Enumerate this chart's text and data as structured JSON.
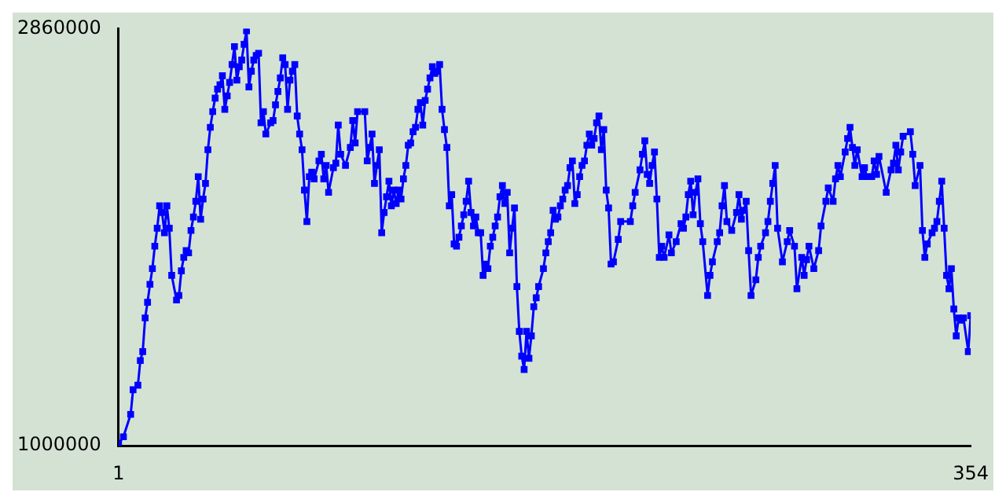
{
  "chart_data": {
    "type": "line",
    "marker": "square",
    "xlim": [
      1,
      354
    ],
    "xticks": [
      1,
      354
    ],
    "ylim": [
      1000000,
      2860000
    ],
    "yticks": [
      1000000,
      2860000
    ],
    "x": [
      1,
      3,
      6,
      7,
      9,
      10,
      11,
      12,
      13,
      14,
      15,
      16,
      17,
      18,
      19,
      20,
      21,
      22,
      23,
      25,
      26,
      27,
      28,
      29,
      30,
      31,
      32,
      33,
      34,
      35,
      36,
      37,
      38,
      39,
      40,
      41,
      42,
      43,
      44,
      45,
      46,
      47,
      48,
      49,
      50,
      51,
      52,
      53,
      54,
      55,
      56,
      57,
      58,
      59,
      60,
      61,
      62,
      64,
      65,
      66,
      67,
      68,
      69,
      70,
      71,
      72,
      73,
      74,
      75,
      76,
      77,
      78,
      79,
      80,
      81,
      82,
      84,
      85,
      86,
      87,
      88,
      90,
      91,
      92,
      93,
      95,
      97,
      98,
      99,
      100,
      103,
      104,
      105,
      106,
      107,
      108,
      109,
      110,
      111,
      112,
      113,
      114,
      115,
      116,
      117,
      118,
      119,
      120,
      121,
      122,
      123,
      124,
      125,
      126,
      127,
      128,
      129,
      130,
      131,
      132,
      133,
      134,
      135,
      136,
      137,
      138,
      139,
      140,
      141,
      142,
      143,
      144,
      145,
      146,
      147,
      148,
      149,
      150,
      151,
      152,
      153,
      154,
      155,
      156,
      157,
      158,
      159,
      160,
      161,
      162,
      163,
      164,
      165,
      166,
      167,
      168,
      169,
      170,
      171,
      172,
      173,
      174,
      175,
      177,
      178,
      179,
      180,
      181,
      182,
      183,
      184,
      185,
      186,
      187,
      188,
      189,
      190,
      191,
      192,
      193,
      194,
      195,
      196,
      197,
      198,
      199,
      200,
      201,
      202,
      203,
      204,
      205,
      206,
      208,
      209,
      213,
      214,
      215,
      217,
      218,
      219,
      220,
      221,
      222,
      223,
      224,
      225,
      226,
      227,
      229,
      230,
      232,
      234,
      235,
      236,
      237,
      238,
      239,
      240,
      241,
      242,
      243,
      245,
      246,
      247,
      249,
      250,
      251,
      252,
      253,
      255,
      257,
      258,
      259,
      260,
      261,
      262,
      263,
      265,
      266,
      267,
      269,
      270,
      271,
      272,
      273,
      274,
      276,
      278,
      279,
      281,
      282,
      284,
      285,
      286,
      287,
      289,
      291,
      292,
      294,
      295,
      297,
      298,
      299,
      300,
      302,
      303,
      304,
      305,
      306,
      307,
      309,
      310,
      311,
      313,
      314,
      315,
      316,
      319,
      321,
      322,
      323,
      324,
      325,
      326,
      329,
      330,
      331,
      333,
      334,
      335,
      336,
      338,
      339,
      340,
      341,
      342,
      343,
      344,
      345,
      346,
      347,
      348,
      349,
      350,
      351,
      353,
      354
    ],
    "series": [
      {
        "color": "#0000ff",
        "values": [
          1010000,
          1040000,
          1140000,
          1250000,
          1270000,
          1380000,
          1420000,
          1570000,
          1640000,
          1720000,
          1790000,
          1890000,
          1970000,
          2070000,
          2040000,
          1950000,
          2070000,
          1970000,
          1760000,
          1650000,
          1670000,
          1780000,
          1840000,
          1870000,
          1860000,
          1960000,
          2020000,
          2090000,
          2200000,
          2010000,
          2100000,
          2170000,
          2320000,
          2420000,
          2490000,
          2550000,
          2590000,
          2610000,
          2650000,
          2500000,
          2560000,
          2620000,
          2700000,
          2780000,
          2630000,
          2690000,
          2720000,
          2790000,
          2850000,
          2600000,
          2670000,
          2720000,
          2740000,
          2750000,
          2440000,
          2490000,
          2390000,
          2440000,
          2450000,
          2520000,
          2580000,
          2640000,
          2730000,
          2700000,
          2500000,
          2630000,
          2670000,
          2700000,
          2470000,
          2390000,
          2320000,
          2140000,
          2000000,
          2200000,
          2220000,
          2190000,
          2270000,
          2300000,
          2190000,
          2250000,
          2130000,
          2240000,
          2260000,
          2430000,
          2300000,
          2250000,
          2330000,
          2450000,
          2350000,
          2490000,
          2490000,
          2270000,
          2330000,
          2390000,
          2170000,
          2250000,
          2320000,
          1950000,
          2040000,
          2110000,
          2180000,
          2070000,
          2140000,
          2080000,
          2140000,
          2100000,
          2190000,
          2250000,
          2340000,
          2350000,
          2400000,
          2420000,
          2500000,
          2530000,
          2430000,
          2540000,
          2590000,
          2640000,
          2690000,
          2660000,
          2670000,
          2700000,
          2500000,
          2410000,
          2330000,
          2070000,
          2120000,
          1900000,
          1890000,
          1930000,
          1980000,
          2030000,
          2090000,
          2180000,
          2040000,
          1980000,
          2020000,
          1950000,
          1950000,
          1760000,
          1810000,
          1790000,
          1890000,
          1930000,
          1980000,
          2020000,
          2110000,
          2160000,
          2080000,
          2130000,
          1860000,
          1970000,
          2060000,
          1710000,
          1510000,
          1400000,
          1340000,
          1510000,
          1390000,
          1490000,
          1620000,
          1660000,
          1710000,
          1790000,
          1860000,
          1910000,
          1950000,
          2050000,
          2010000,
          2020000,
          2070000,
          2100000,
          2140000,
          2160000,
          2240000,
          2270000,
          2080000,
          2120000,
          2200000,
          2250000,
          2270000,
          2340000,
          2390000,
          2340000,
          2370000,
          2440000,
          2470000,
          2320000,
          2410000,
          2140000,
          2060000,
          1810000,
          1820000,
          1920000,
          2000000,
          2000000,
          2070000,
          2130000,
          2230000,
          2300000,
          2360000,
          2210000,
          2170000,
          2250000,
          2310000,
          2100000,
          1840000,
          1890000,
          1840000,
          1940000,
          1860000,
          1910000,
          1990000,
          1970000,
          2020000,
          2120000,
          2180000,
          2030000,
          2130000,
          2190000,
          1990000,
          1910000,
          1670000,
          1760000,
          1820000,
          1910000,
          1950000,
          2070000,
          2160000,
          2000000,
          1960000,
          2040000,
          2120000,
          2010000,
          2050000,
          2090000,
          1870000,
          1670000,
          1740000,
          1840000,
          1890000,
          1950000,
          2000000,
          2090000,
          2170000,
          2250000,
          1970000,
          1820000,
          1910000,
          1960000,
          1890000,
          1700000,
          1840000,
          1760000,
          1830000,
          1890000,
          1790000,
          1870000,
          1980000,
          2090000,
          2150000,
          2090000,
          2190000,
          2250000,
          2200000,
          2310000,
          2370000,
          2420000,
          2330000,
          2250000,
          2320000,
          2200000,
          2240000,
          2200000,
          2200000,
          2270000,
          2210000,
          2290000,
          2130000,
          2230000,
          2260000,
          2340000,
          2230000,
          2310000,
          2380000,
          2400000,
          2300000,
          2160000,
          2250000,
          1960000,
          1840000,
          1900000,
          1950000,
          1970000,
          2000000,
          2090000,
          2180000,
          1970000,
          1760000,
          1700000,
          1790000,
          1610000,
          1490000,
          1570000,
          1560000,
          1570000,
          1420000,
          1580000
        ]
      }
    ]
  }
}
